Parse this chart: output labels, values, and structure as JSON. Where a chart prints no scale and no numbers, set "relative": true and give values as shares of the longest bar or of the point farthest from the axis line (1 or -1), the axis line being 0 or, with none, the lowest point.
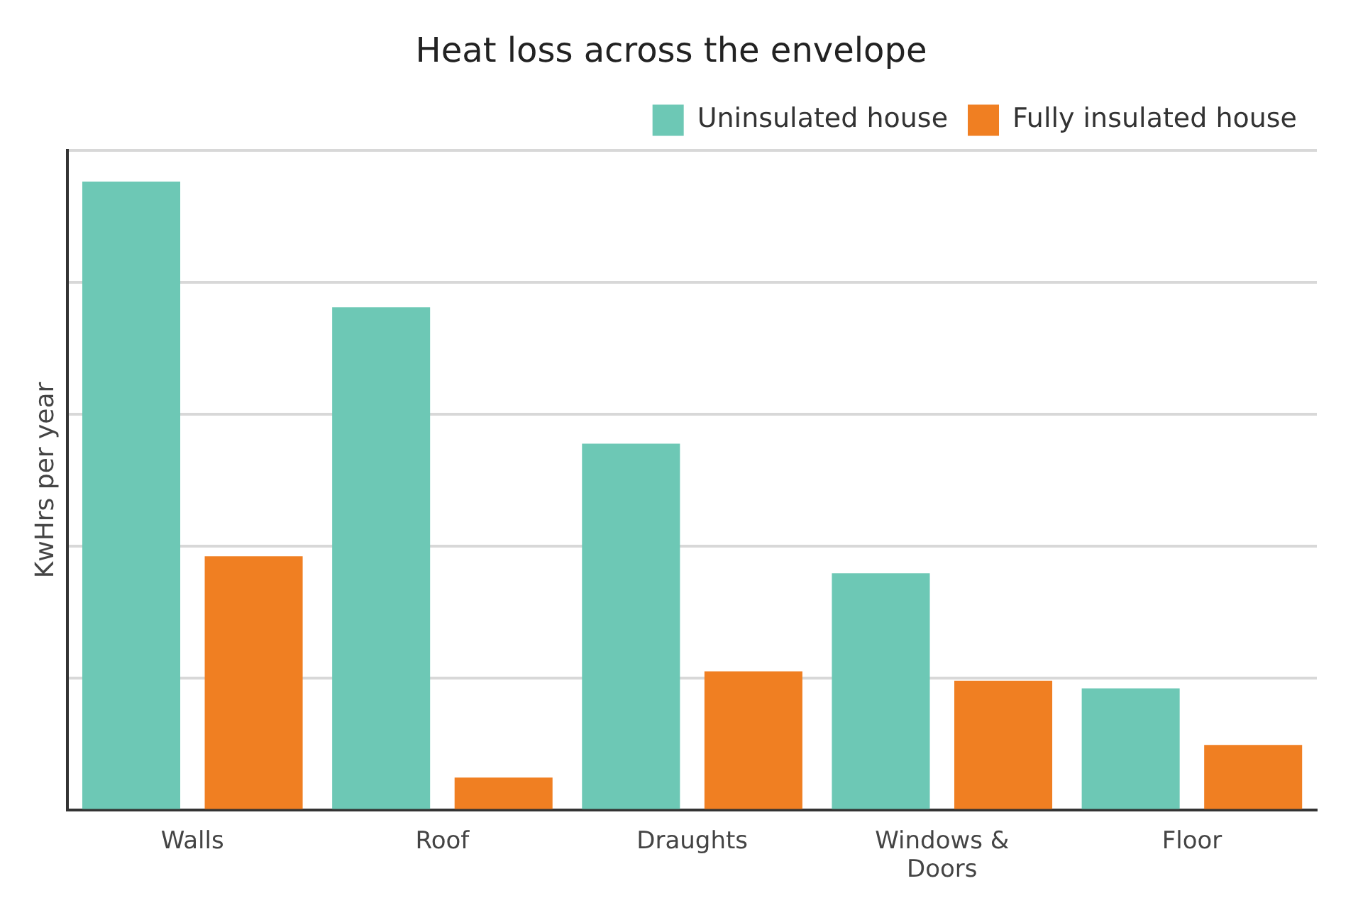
{
  "chart_data": {
    "type": "bar",
    "title": "Heat loss across the envelope",
    "ylabel": "KwHrs per year",
    "relative": true,
    "categories": [
      "Walls",
      "Roof",
      "Draughts",
      "Windows & Doors",
      "Floor"
    ],
    "series": [
      {
        "name": "Uninsulated house",
        "color": "#6dc8b5",
        "values": [
          1,
          0.8,
          0.583,
          0.377,
          0.194
        ]
      },
      {
        "name": "Fully insulated house",
        "color": "#f07f22",
        "values": [
          0.404,
          0.052,
          0.221,
          0.206,
          0.104
        ]
      }
    ],
    "grid": "y",
    "legend": "top right"
  }
}
